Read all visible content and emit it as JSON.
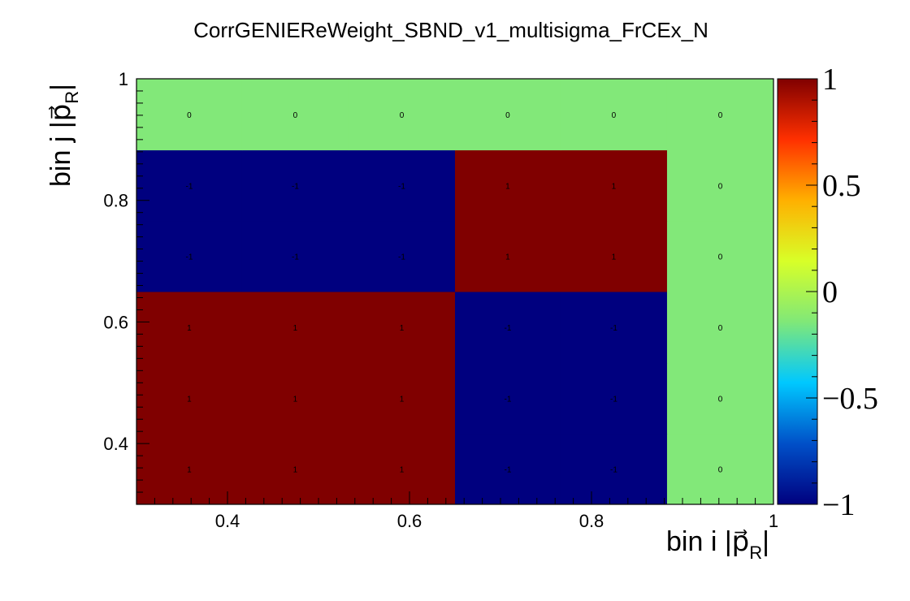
{
  "chart_data": {
    "type": "heatmap",
    "title": "CorrGENIEReWeight_SBND_v1_multisigma_FrCEx_N",
    "xlabel": {
      "text": "bin i |",
      "symbol": "p",
      "subscript": "R",
      "suffix": "|"
    },
    "ylabel": {
      "text": "bin j |",
      "symbol": "p",
      "subscript": "R",
      "suffix": "|"
    },
    "xlim": [
      0.3,
      1
    ],
    "ylim": [
      0.3,
      1
    ],
    "x_ticks": [
      0.4,
      0.6,
      0.8,
      1
    ],
    "x_tick_labels": [
      "0.4",
      "0.6",
      "0.8",
      "1"
    ],
    "y_ticks": [
      0.4,
      0.6,
      0.8,
      1
    ],
    "y_tick_labels": [
      "0.4",
      "0.6",
      "0.8",
      "1"
    ],
    "x_edges": [
      0.3,
      0.416,
      0.533,
      0.65,
      0.766,
      0.883,
      1.0
    ],
    "y_edges": [
      0.3,
      0.416,
      0.533,
      0.65,
      0.766,
      0.883,
      1.0
    ],
    "z": [
      [
        1,
        1,
        1,
        -1,
        -1,
        0
      ],
      [
        1,
        1,
        1,
        -1,
        -1,
        0
      ],
      [
        1,
        1,
        1,
        -1,
        -1,
        0
      ],
      [
        -1,
        -1,
        -1,
        1,
        1,
        0
      ],
      [
        -1,
        -1,
        -1,
        1,
        1,
        0
      ],
      [
        0,
        0,
        0,
        0,
        0,
        0
      ]
    ],
    "zlim": [
      -1,
      1
    ],
    "colorbar_ticks": [
      1,
      0.5,
      0,
      -0.5,
      -1
    ],
    "colorbar_tick_labels": [
      "1",
      "0.5",
      "0",
      "−0.5",
      "−1"
    ],
    "colormap": [
      "#00007f",
      "#0050c8",
      "#00c8ff",
      "#80e878",
      "#d8ff28",
      "#ffb000",
      "#ff3000",
      "#800000"
    ],
    "cell_colors": {
      "pos": "#800000",
      "neg": "#00007f",
      "zero": "#82e879"
    },
    "grid": false,
    "legend": "colorbar-right"
  }
}
